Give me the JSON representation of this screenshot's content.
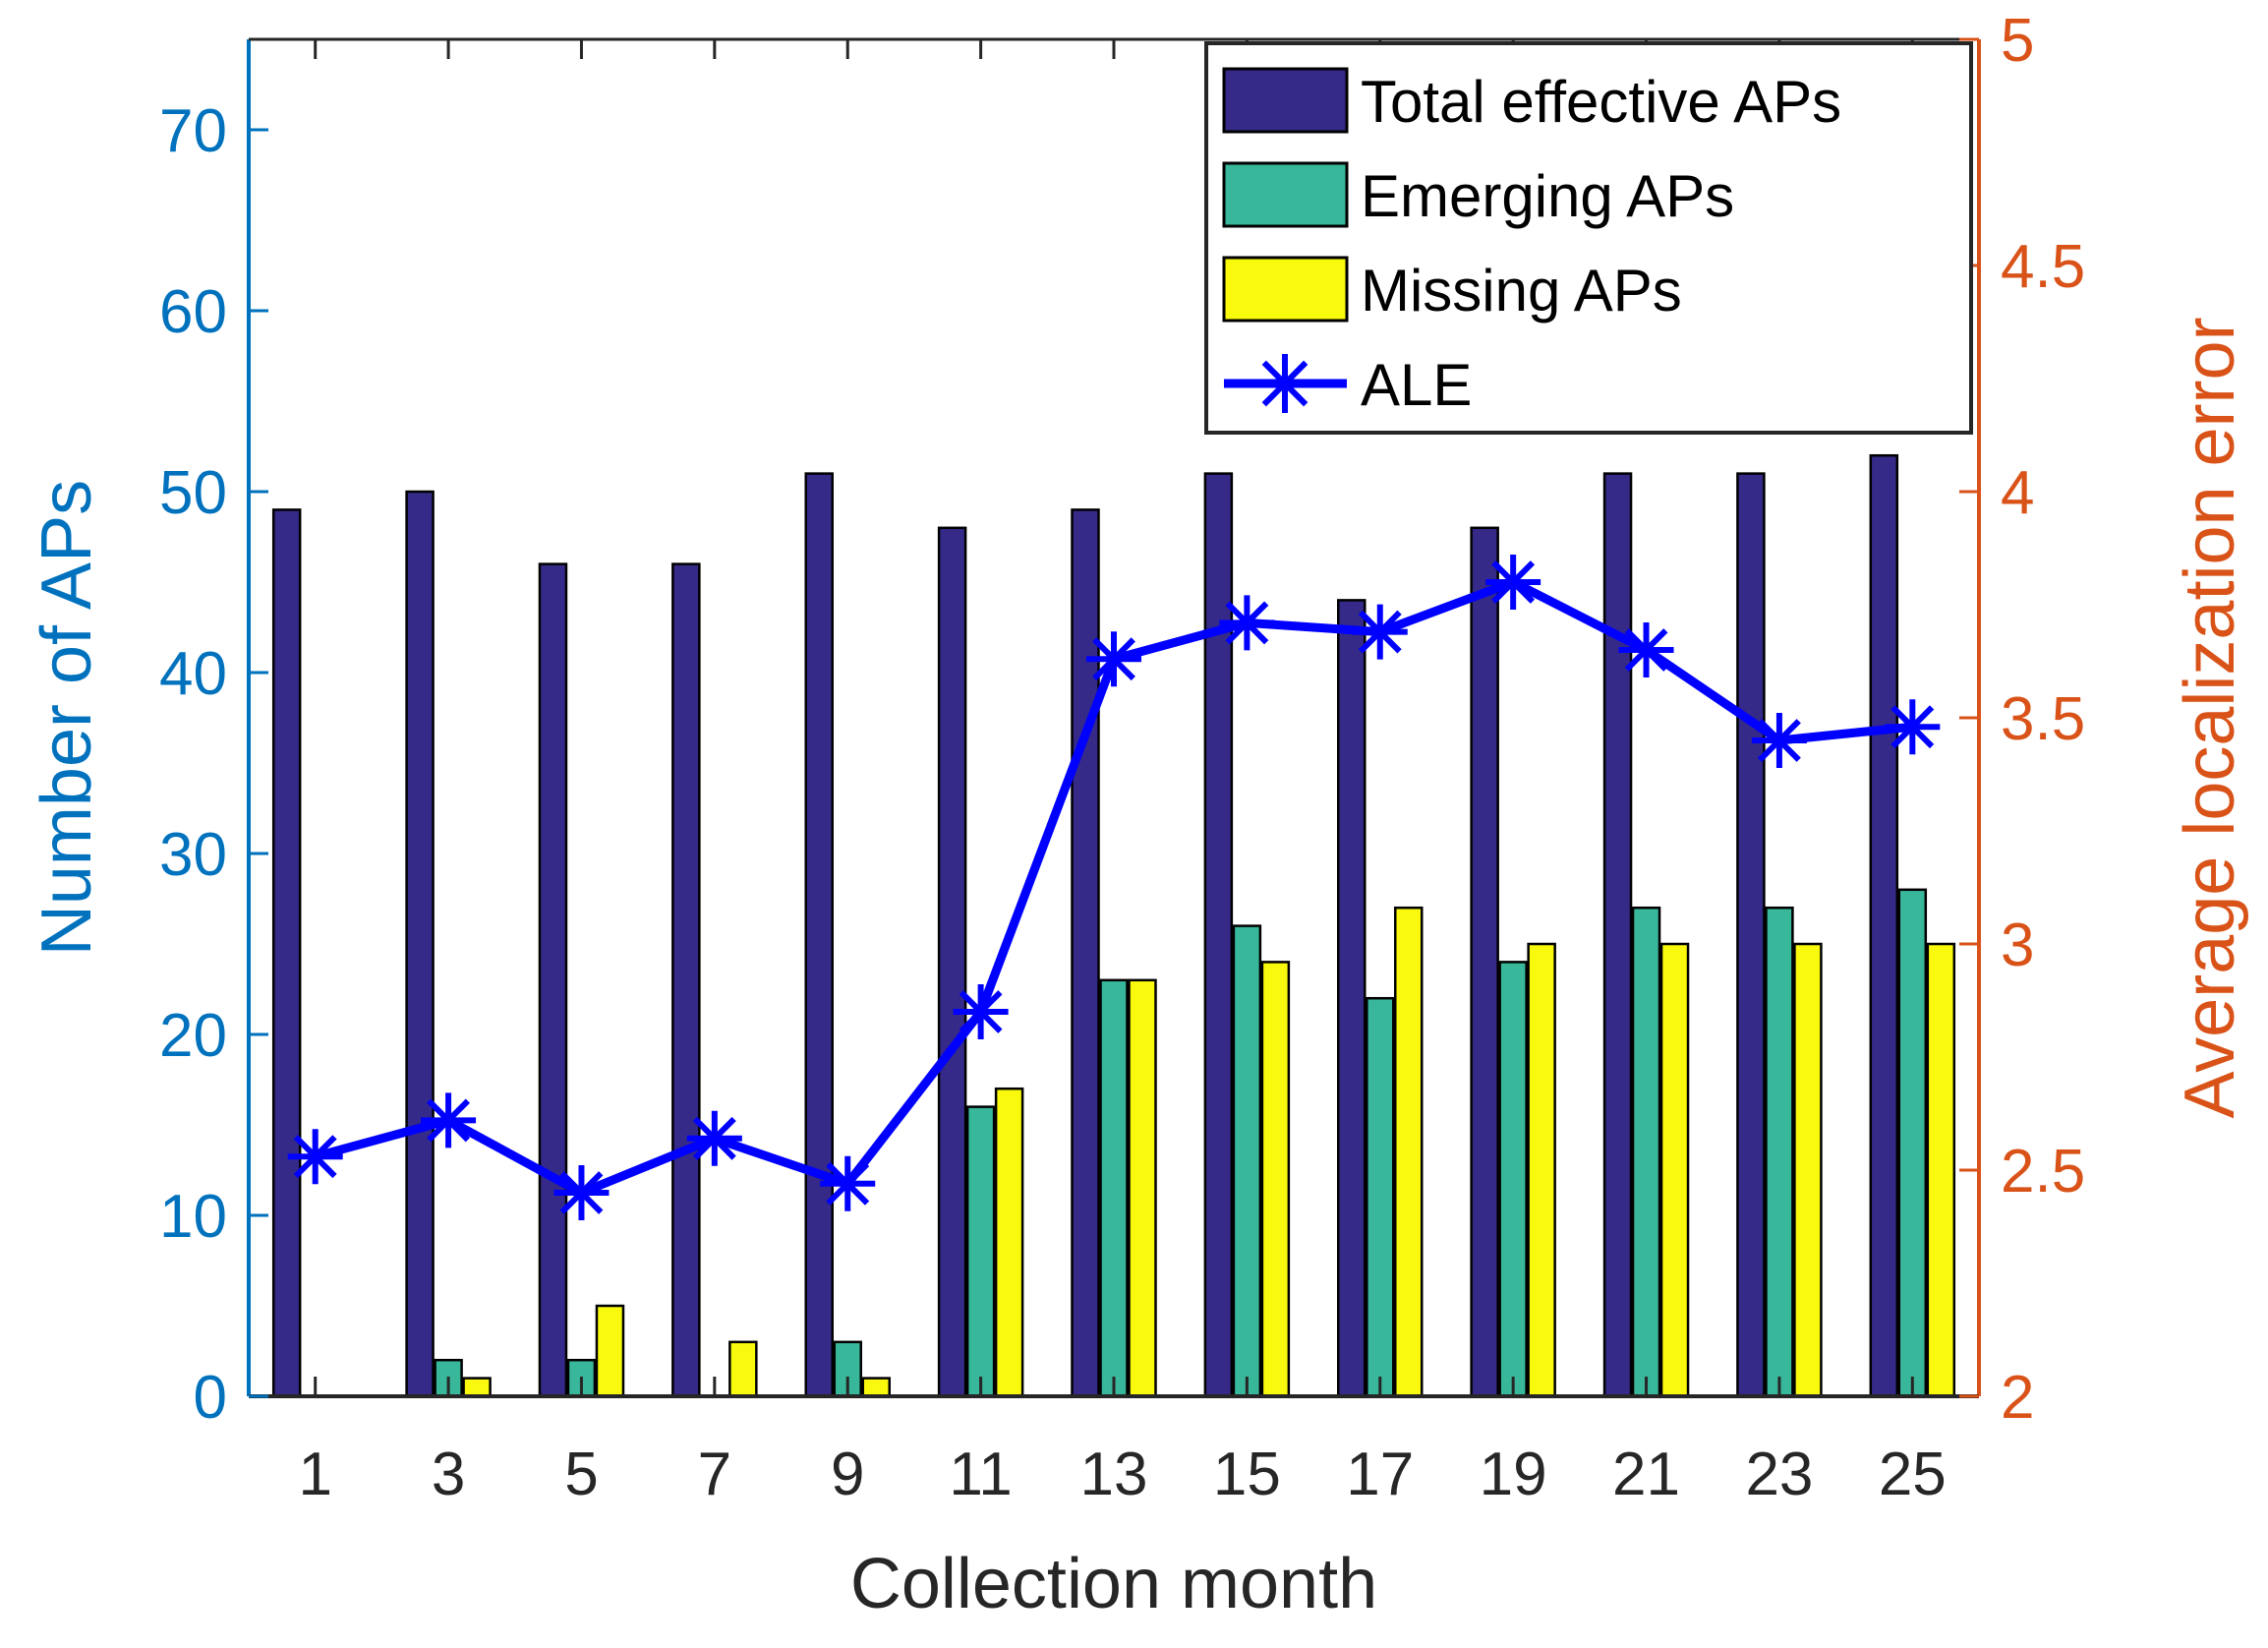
{
  "chart_data": {
    "type": "bar",
    "x": [
      1,
      3,
      5,
      7,
      9,
      11,
      13,
      15,
      17,
      19,
      21,
      23,
      25
    ],
    "xlabel": "Collection month",
    "ylabel_left": "Number of APs",
    "ylabel_right": "Average localization error",
    "ylim_left": [
      0,
      75
    ],
    "yticks_left": [
      0,
      10,
      20,
      30,
      40,
      50,
      60,
      70
    ],
    "ylim_right": [
      2,
      5
    ],
    "yticks_right": [
      2,
      2.5,
      3,
      3.5,
      4,
      4.5,
      5
    ],
    "series": [
      {
        "name": "Total effective APs",
        "kind": "bar",
        "axis": "left",
        "color": "#352A87",
        "values": [
          49,
          50,
          46,
          46,
          51,
          48,
          49,
          51,
          44,
          48,
          51,
          51,
          52
        ]
      },
      {
        "name": "Emerging APs",
        "kind": "bar",
        "axis": "left",
        "color": "#38B79B",
        "values": [
          0,
          2,
          2,
          0,
          3,
          16,
          23,
          26,
          22,
          24,
          27,
          27,
          28
        ]
      },
      {
        "name": "Missing APs",
        "kind": "bar",
        "axis": "left",
        "color": "#F9F90E",
        "values": [
          0,
          1,
          5,
          3,
          1,
          17,
          23,
          24,
          27,
          25,
          25,
          25,
          25
        ]
      },
      {
        "name": "ALE",
        "kind": "line",
        "axis": "right",
        "color": "#0000FF",
        "marker": "asterisk",
        "values": [
          2.53,
          2.61,
          2.45,
          2.57,
          2.47,
          2.85,
          3.63,
          3.71,
          3.69,
          3.8,
          3.65,
          3.45,
          3.48
        ]
      }
    ],
    "legend": {
      "position": "top-right",
      "entries": [
        "Total effective APs",
        "Emerging APs",
        "Missing APs",
        "ALE"
      ]
    },
    "grid": false
  }
}
